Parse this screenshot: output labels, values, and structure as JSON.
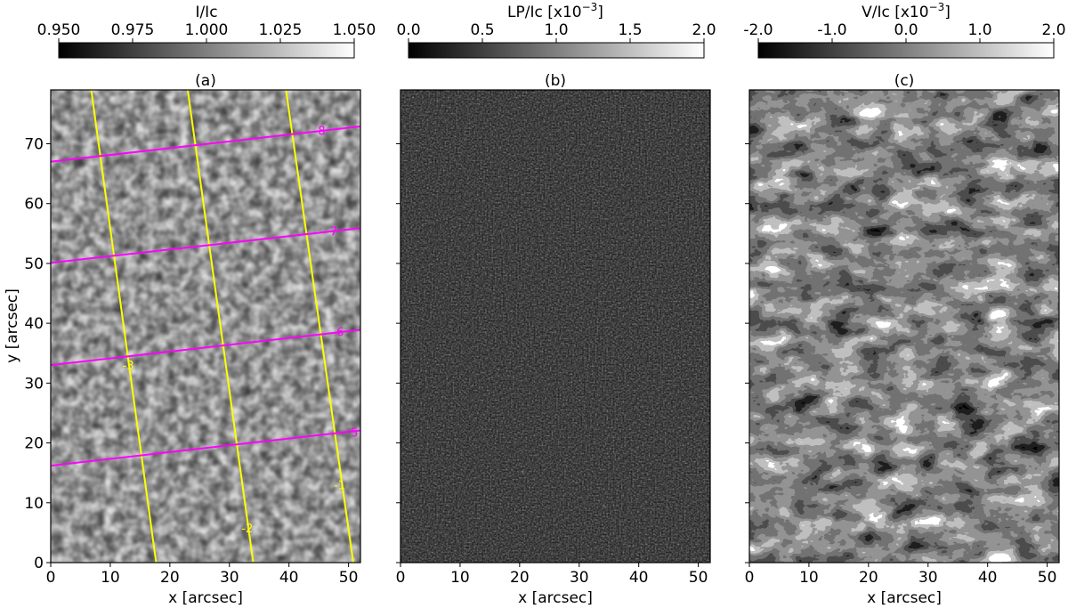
{
  "chart_data": [
    {
      "type": "heatmap",
      "panel_label": "(a)",
      "colorbar": {
        "label": "I/Ic",
        "range": [
          0.95,
          1.05
        ],
        "ticks": [
          "0.950",
          "0.975",
          "1.000",
          "1.025",
          "1.050"
        ],
        "tick_values": [
          0.95,
          0.975,
          1.0,
          1.025,
          1.05
        ],
        "colormap": "gray"
      },
      "xlabel": "x [arcsec]",
      "ylabel": "y [arcsec]",
      "xlim": [
        0,
        52
      ],
      "ylim": [
        0,
        79
      ],
      "xticks": [
        "0",
        "10",
        "20",
        "30",
        "40",
        "50"
      ],
      "yticks": [
        "0",
        "10",
        "20",
        "30",
        "40",
        "50",
        "60",
        "70"
      ],
      "pattern": "granulation",
      "overlay_lines": [
        {
          "label": "-3",
          "color": "#ffff00",
          "x1": 6.8,
          "y1": 79,
          "x2": 17.7,
          "y2": 0,
          "label_x": 13,
          "label_y": 33
        },
        {
          "label": "-2",
          "color": "#ffff00",
          "x1": 23.0,
          "y1": 79,
          "x2": 34.0,
          "y2": 0,
          "label_x": 33,
          "label_y": 5.8
        },
        {
          "label": "-1",
          "color": "#ffff00",
          "x1": 39.5,
          "y1": 79,
          "x2": 50.8,
          "y2": 0,
          "label_x": 48.5,
          "label_y": 13
        },
        {
          "label": "5",
          "color": "#ff00ff",
          "x1": 0,
          "y1": 16.2,
          "x2": 52,
          "y2": 22.1,
          "label_x": 51,
          "label_y": 21.8
        },
        {
          "label": "6",
          "color": "#ff00ff",
          "x1": 0,
          "y1": 33.0,
          "x2": 52,
          "y2": 38.9,
          "label_x": 48.6,
          "label_y": 38.6
        },
        {
          "label": "7",
          "color": "#ff00ff",
          "x1": 0,
          "y1": 50.1,
          "x2": 52,
          "y2": 55.9,
          "label_x": 47.5,
          "label_y": 55.4
        },
        {
          "label": "8",
          "color": "#ff00ff",
          "x1": 0,
          "y1": 67.0,
          "x2": 52,
          "y2": 72.9,
          "label_x": 45.5,
          "label_y": 72.2
        }
      ]
    },
    {
      "type": "heatmap",
      "panel_label": "(b)",
      "colorbar": {
        "label": "LP/Ic [x10",
        "label_exp": "−3",
        "label_close": "]",
        "range": [
          0.0,
          2.0
        ],
        "ticks": [
          "0.0",
          "0.5",
          "1.0",
          "1.5",
          "2.0"
        ],
        "tick_values": [
          0.0,
          0.5,
          1.0,
          1.5,
          2.0
        ],
        "colormap": "gray"
      },
      "xlabel": "x [arcsec]",
      "xlim": [
        0,
        52
      ],
      "ylim": [
        0,
        79
      ],
      "xticks": [
        "0",
        "10",
        "20",
        "30",
        "40",
        "50"
      ],
      "pattern": "sparse-bright-noise"
    },
    {
      "type": "heatmap",
      "panel_label": "(c)",
      "colorbar": {
        "label": "V/Ic [x10",
        "label_exp": "−3",
        "label_close": "]",
        "range": [
          -2.0,
          2.0
        ],
        "ticks": [
          "-2.0",
          "-1.0",
          "0.0",
          "1.0",
          "2.0"
        ],
        "tick_values": [
          -2.0,
          -1.0,
          0.0,
          1.0,
          2.0
        ],
        "colormap": "gray"
      },
      "xlabel": "x [arcsec]",
      "xlim": [
        0,
        52
      ],
      "ylim": [
        0,
        79
      ],
      "xticks": [
        "0",
        "10",
        "20",
        "30",
        "40",
        "50"
      ],
      "pattern": "patchy-saturated"
    }
  ]
}
